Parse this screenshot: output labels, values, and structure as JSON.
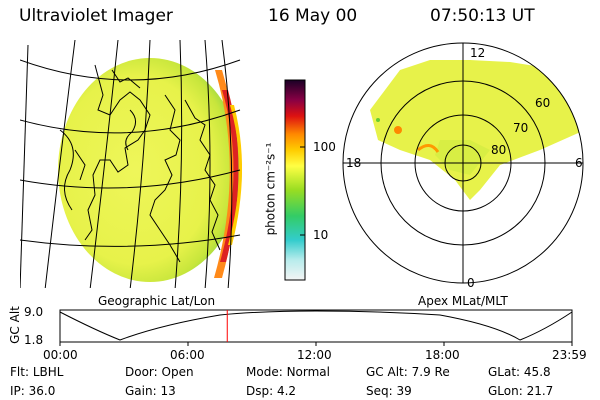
{
  "header": {
    "instrument": "Ultraviolet Imager",
    "date": "16 May 00",
    "time": "07:50:13 UT"
  },
  "colorbar": {
    "unit_label": "photon cm⁻²s⁻¹",
    "ticks": [
      "100",
      "10"
    ]
  },
  "polar_plot": {
    "mlt_labels": {
      "top": "12",
      "left": "18",
      "right": "6",
      "bottom": "0"
    },
    "lat_labels": [
      "60",
      "70",
      "80"
    ]
  },
  "panel_labels": {
    "left": "Geographic Lat/Lon",
    "right": "Apex MLat/MLT"
  },
  "altitude_plot": {
    "axis_title": "GC Alt",
    "y_ticks": [
      "9.0",
      "1.8"
    ],
    "x_ticks": [
      "00:00",
      "06:00",
      "12:00",
      "18:00",
      "23:59"
    ],
    "current_marker_hours": 7.84,
    "marker_color": "#ff0000"
  },
  "info": {
    "row1": [
      {
        "key": "Flt:",
        "val": "LBHL"
      },
      {
        "key": "Door:",
        "val": "Open"
      },
      {
        "key": "Mode:",
        "val": "Normal"
      },
      {
        "key": "GC Alt:",
        "val": "7.9 Re"
      },
      {
        "key": "GLat:",
        "val": "45.8"
      }
    ],
    "row2": [
      {
        "key": "IP:",
        "val": "36.0"
      },
      {
        "key": "Gain:",
        "val": "13"
      },
      {
        "key": "Dsp:",
        "val": "4.2"
      },
      {
        "key": "Seq:",
        "val": "39"
      },
      {
        "key": "GLon:",
        "val": "21.7"
      }
    ]
  }
}
